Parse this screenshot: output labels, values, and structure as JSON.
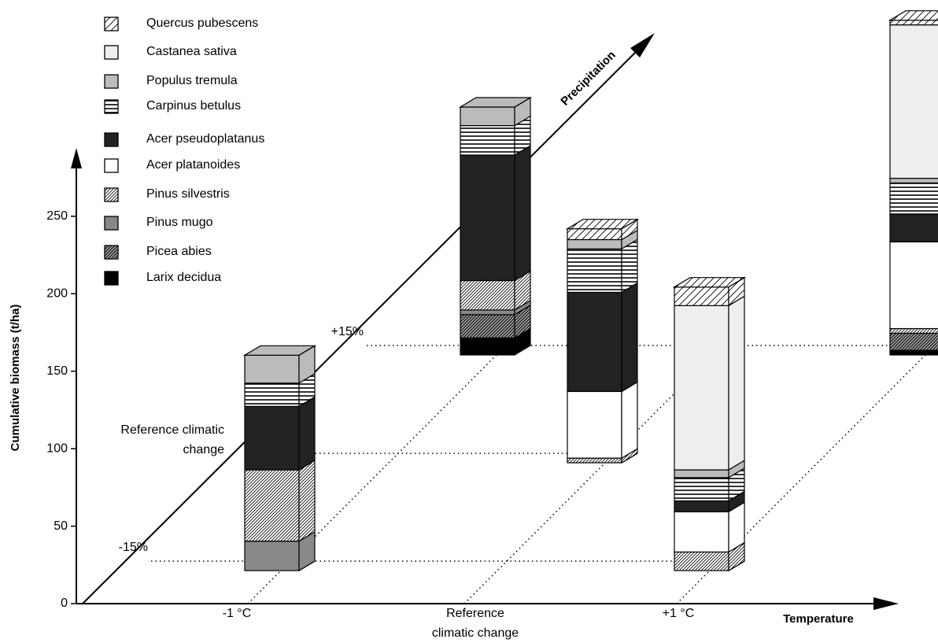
{
  "chart_data": {
    "type": "bar3d",
    "y_label": "Cumulative biomass (t/ha)",
    "x_label": "Temperature",
    "z_label": "Precipitation",
    "categories": [
      "-1 °C",
      "Reference climatic change",
      "+1 °C"
    ],
    "z_categories": [
      "-15%",
      "Reference climatic change",
      "+15%"
    ],
    "ylim": [
      0,
      290
    ],
    "yticks": [
      0,
      50,
      100,
      150,
      200,
      250
    ],
    "series": [
      {
        "name": "Quercus pubescens",
        "color": "#ffffff",
        "pattern": "diag-sparse",
        "values": [
          [
            0,
            null,
            0
          ],
          [
            null,
            7,
            null
          ],
          [
            12,
            null,
            3
          ]
        ]
      },
      {
        "name": "Castanea sativa",
        "color": "#eeeeee",
        "values": [
          [
            0,
            null,
            0
          ],
          [
            null,
            0,
            null
          ],
          [
            106,
            null,
            99
          ]
        ]
      },
      {
        "name": "Populus tremula",
        "color": "#bbbbbb",
        "values": [
          [
            18,
            null,
            12
          ],
          [
            null,
            6,
            null
          ],
          [
            5,
            null,
            3
          ]
        ]
      },
      {
        "name": "Carpinus betulus",
        "color": "#ffffff",
        "pattern": "horizontal",
        "values": [
          [
            15,
            null,
            19
          ],
          [
            null,
            28,
            null
          ],
          [
            15,
            null,
            20
          ]
        ]
      },
      {
        "name": "Acer pseudoplatanus",
        "color": "#222222",
        "values": [
          [
            41,
            null,
            81
          ],
          [
            null,
            64,
            null
          ],
          [
            7,
            null,
            18
          ]
        ]
      },
      {
        "name": "Acer platanoides",
        "color": "#ffffff",
        "values": [
          [
            0,
            null,
            0
          ],
          [
            null,
            43,
            null
          ],
          [
            26,
            null,
            56
          ]
        ]
      },
      {
        "name": "Pinus silvestris",
        "color": "#ffffff",
        "pattern": "diag-dense",
        "values": [
          [
            46,
            null,
            19
          ],
          [
            null,
            3,
            null
          ],
          [
            12,
            null,
            3
          ]
        ]
      },
      {
        "name": "Pinus mugo",
        "color": "#888888",
        "values": [
          [
            19,
            null,
            3
          ],
          [
            null,
            0,
            null
          ],
          [
            0,
            null,
            0
          ]
        ]
      },
      {
        "name": "Picea abies",
        "color": "#444444",
        "pattern": "diag-dark",
        "values": [
          [
            0,
            null,
            15
          ],
          [
            null,
            0,
            null
          ],
          [
            0,
            null,
            11
          ]
        ]
      },
      {
        "name": "Larix decidua",
        "color": "#000000",
        "values": [
          [
            0,
            null,
            11
          ],
          [
            null,
            0,
            null
          ],
          [
            0,
            null,
            3
          ]
        ]
      }
    ]
  }
}
